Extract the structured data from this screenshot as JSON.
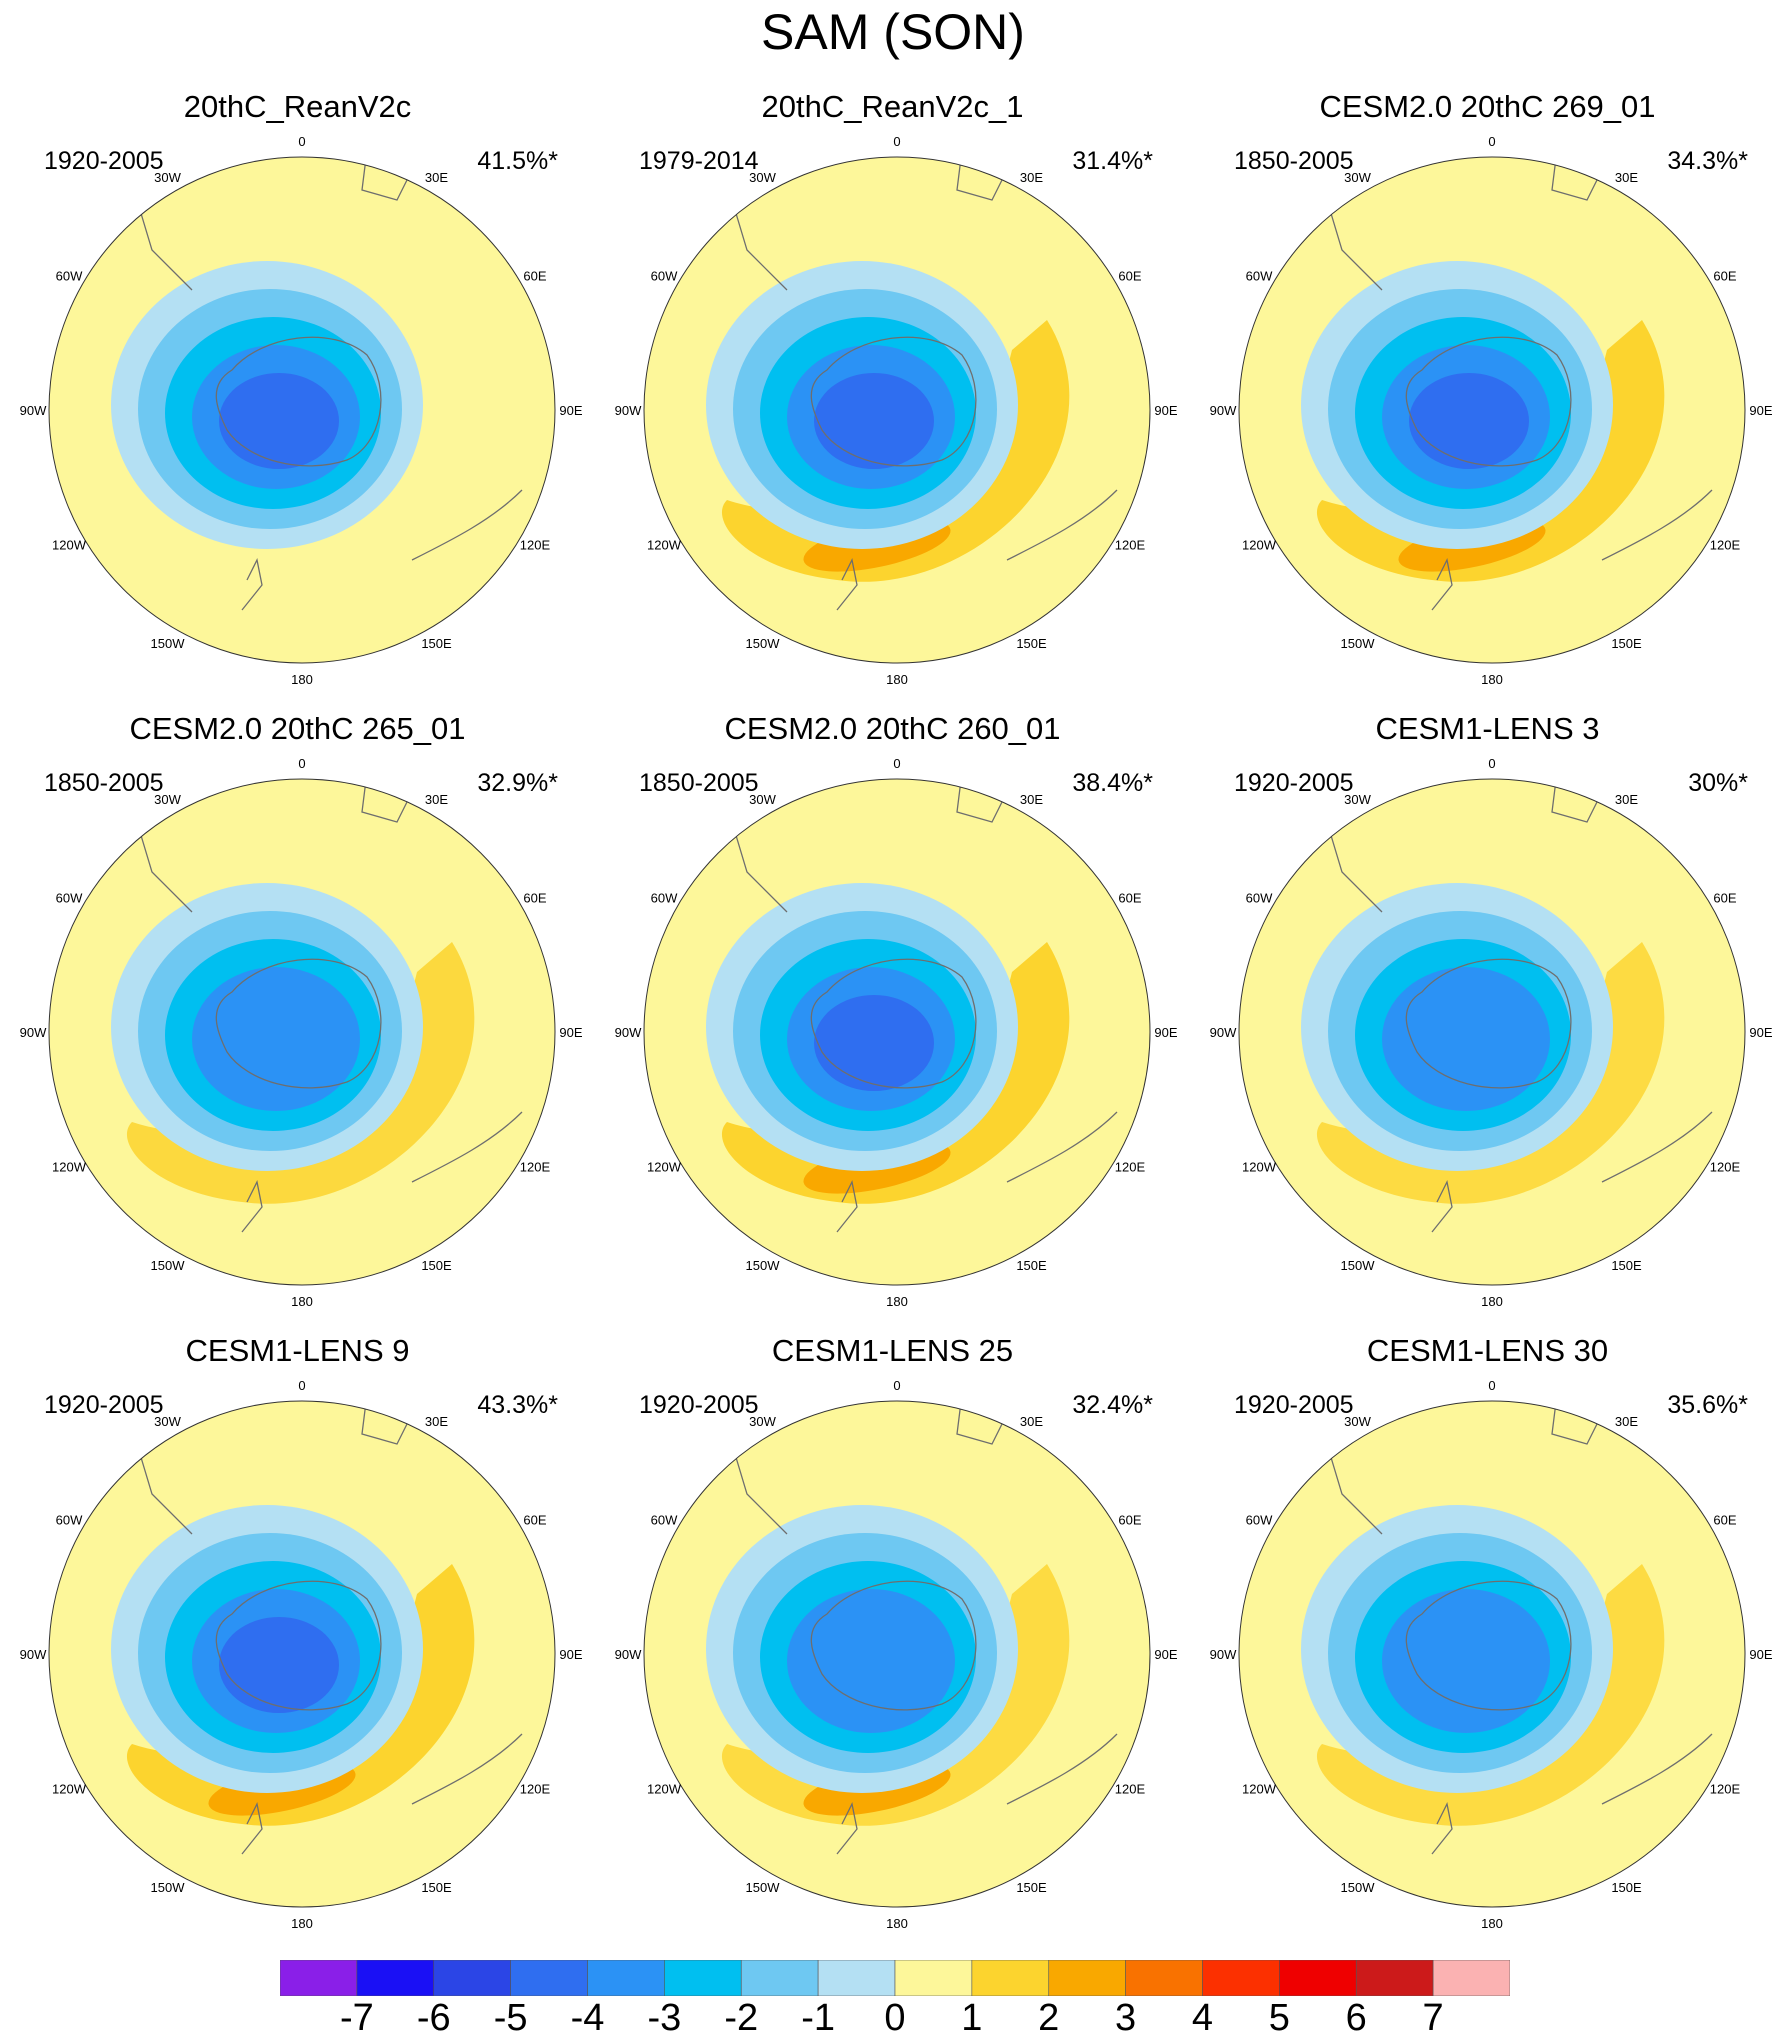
{
  "title": "SAM (SON)",
  "longitude_labels": [
    "0",
    "30E",
    "60E",
    "90E",
    "120E",
    "150E",
    "180",
    "150W",
    "120W",
    "90W",
    "60W",
    "30W"
  ],
  "chart_data": {
    "type": "polar-contour-map",
    "projection": "south polar stereographic",
    "panels": [
      {
        "title": "20thC_ReanV2c",
        "period": "1920-2005",
        "explained_variance": "41.5%*",
        "min_level": -5,
        "max_level": 1,
        "positive_ring_strength": 0.2
      },
      {
        "title": "20thC_ReanV2c_1",
        "period": "1979-2014",
        "explained_variance": "31.4%*",
        "min_level": -5,
        "max_level": 3,
        "positive_ring_strength": 1
      },
      {
        "title": "CESM2.0 20thC 269_01",
        "period": "1850-2005",
        "explained_variance": "34.3%*",
        "min_level": -5,
        "max_level": 3,
        "positive_ring_strength": 1
      },
      {
        "title": "CESM2.0 20thC 265_01",
        "period": "1850-2005",
        "explained_variance": "32.9%*",
        "min_level": -4,
        "max_level": 2,
        "positive_ring_strength": 0.85
      },
      {
        "title": "CESM2.0 20thC 260_01",
        "period": "1850-2005",
        "explained_variance": "38.4%*",
        "min_level": -5,
        "max_level": 3,
        "positive_ring_strength": 1
      },
      {
        "title": "CESM1-LENS 3",
        "period": "1920-2005",
        "explained_variance": "30%*",
        "min_level": -4,
        "max_level": 2,
        "positive_ring_strength": 0.8
      },
      {
        "title": "CESM1-LENS 9",
        "period": "1920-2005",
        "explained_variance": "43.3%*",
        "min_level": -5,
        "max_level": 3,
        "positive_ring_strength": 1
      },
      {
        "title": "CESM1-LENS 25",
        "period": "1920-2005",
        "explained_variance": "32.4%*",
        "min_level": -4,
        "max_level": 3,
        "positive_ring_strength": 0.8
      },
      {
        "title": "CESM1-LENS 30",
        "period": "1920-2005",
        "explained_variance": "35.6%*",
        "min_level": -4,
        "max_level": 2,
        "positive_ring_strength": 0.8
      }
    ],
    "colorbar": {
      "levels": [
        "-7",
        "-6",
        "-5",
        "-4",
        "-3",
        "-2",
        "-1",
        "0",
        "1",
        "2",
        "3",
        "4",
        "5",
        "6",
        "7"
      ],
      "colors": [
        "#8a1fe8",
        "#1a10f5",
        "#2b45e6",
        "#2f6ef0",
        "#2b92f5",
        "#00bff0",
        "#6ec8f2",
        "#b4e0f3",
        "#fdf79a",
        "#fcd42e",
        "#f9a800",
        "#f97200",
        "#fc3000",
        "#ef0000",
        "#cc1a1a",
        "#fbb2b2"
      ]
    }
  }
}
